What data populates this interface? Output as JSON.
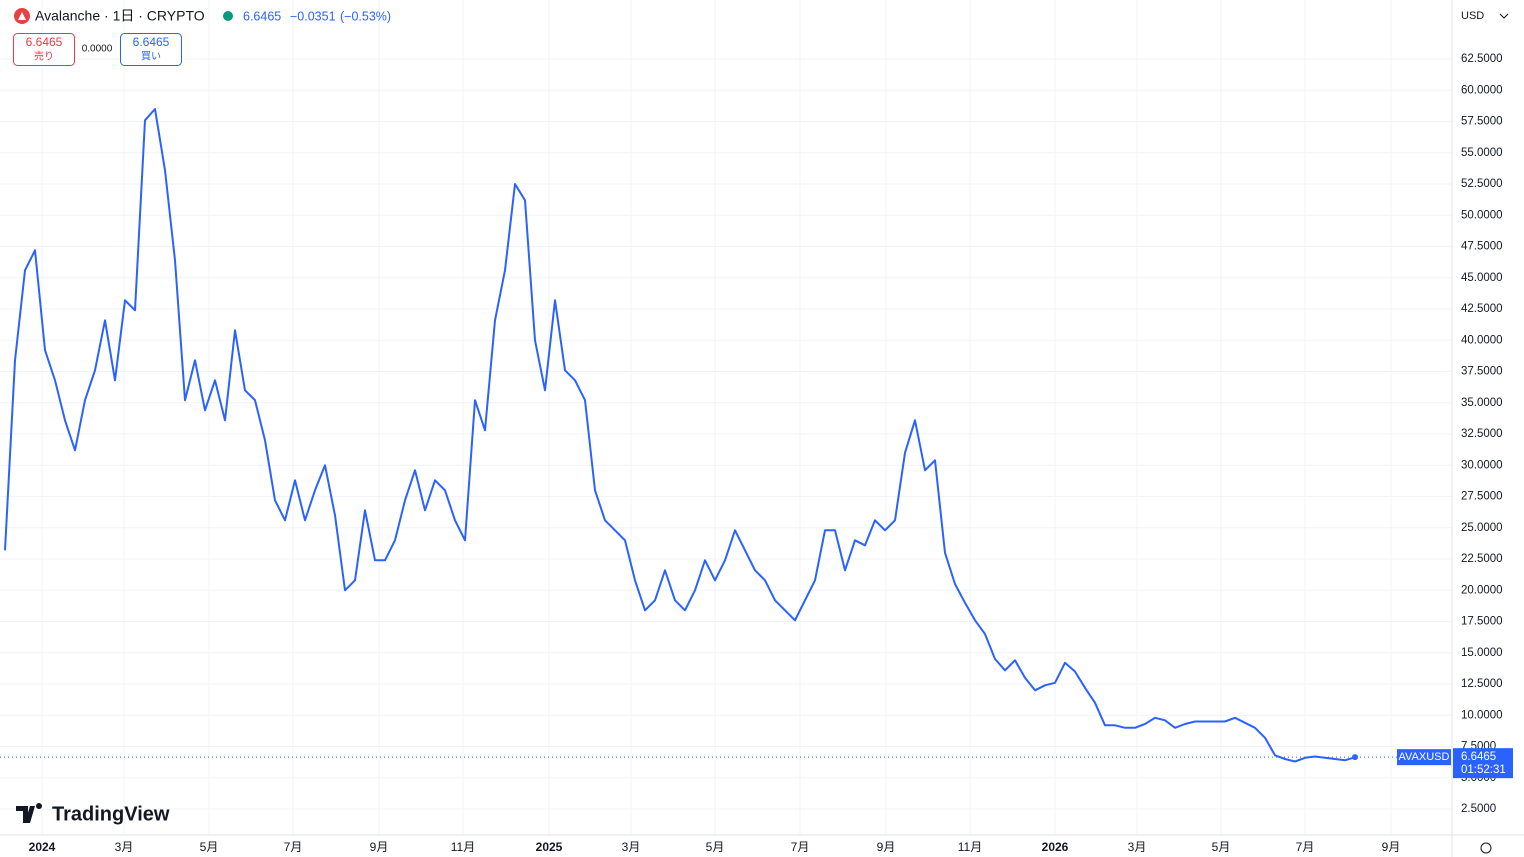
{
  "header": {
    "symbol": "Avalanche · 1日 · CRYPTO",
    "price": "6.6465",
    "change": "−0.0351",
    "change_pct": "(−0.53%)",
    "sell_price": "6.6465",
    "sell_label": "売り",
    "spread": "0.0000",
    "buy_price": "6.6465",
    "buy_label": "買い",
    "currency": "USD",
    "brand": "TradingView"
  },
  "chart_data": {
    "type": "line",
    "color": "#2962ff",
    "grid": true,
    "xlim": [
      0,
      144.7
    ],
    "xticks": [
      {
        "value": 3.7,
        "label": "2024"
      },
      {
        "value": 11.9,
        "label": "3月"
      },
      {
        "value": 20.4,
        "label": "5月"
      },
      {
        "value": 28.8,
        "label": "7月"
      },
      {
        "value": 37.4,
        "label": "9月"
      },
      {
        "value": 45.8,
        "label": "11月"
      },
      {
        "value": 54.4,
        "label": "2025"
      },
      {
        "value": 62.6,
        "label": "3月"
      },
      {
        "value": 71,
        "label": "5月"
      },
      {
        "value": 79.5,
        "label": "7月"
      },
      {
        "value": 88.1,
        "label": "9月"
      },
      {
        "value": 96.5,
        "label": "11月"
      },
      {
        "value": 105,
        "label": "2026"
      },
      {
        "value": 113.2,
        "label": "3月"
      },
      {
        "value": 121.6,
        "label": "5月"
      },
      {
        "value": 130,
        "label": "7月"
      },
      {
        "value": 138.6,
        "label": "9月"
      }
    ],
    "ylim": [
      0.42,
      67.22
    ],
    "yticks": [
      {
        "value": 2.5,
        "label": "2.5000"
      },
      {
        "value": 5,
        "label": "5.0000"
      },
      {
        "value": 7.5,
        "label": "7.5000"
      },
      {
        "value": 10,
        "label": "10.0000"
      },
      {
        "value": 12.5,
        "label": "12.5000"
      },
      {
        "value": 15,
        "label": "15.0000"
      },
      {
        "value": 17.5,
        "label": "17.5000"
      },
      {
        "value": 20,
        "label": "20.0000"
      },
      {
        "value": 22.5,
        "label": "22.5000"
      },
      {
        "value": 25,
        "label": "25.0000"
      },
      {
        "value": 27.5,
        "label": "27.5000"
      },
      {
        "value": 30,
        "label": "30.0000"
      },
      {
        "value": 32.5,
        "label": "32.5000"
      },
      {
        "value": 35,
        "label": "35.0000"
      },
      {
        "value": 37.5,
        "label": "37.5000"
      },
      {
        "value": 40,
        "label": "40.0000"
      },
      {
        "value": 42.5,
        "label": "42.5000"
      },
      {
        "value": 45,
        "label": "45.0000"
      },
      {
        "value": 47.5,
        "label": "47.5000"
      },
      {
        "value": 50,
        "label": "50.0000"
      },
      {
        "value": 52.5,
        "label": "52.5000"
      },
      {
        "value": 55,
        "label": "55.0000"
      },
      {
        "value": 57.5,
        "label": "57.5000"
      },
      {
        "value": 60,
        "label": "60.0000"
      },
      {
        "value": 62.5,
        "label": "62.5000"
      }
    ],
    "values": [
      23.2,
      38.4,
      45.6,
      47.2,
      39.2,
      36.8,
      33.6,
      31.2,
      35.2,
      37.6,
      41.6,
      36.8,
      43.2,
      42.4,
      57.6,
      58.5,
      53.6,
      46.4,
      35.2,
      38.4,
      34.4,
      36.8,
      33.6,
      40.8,
      36,
      35.2,
      32,
      27.2,
      25.6,
      28.8,
      25.6,
      28,
      30,
      26,
      20,
      20.8,
      26.4,
      22.4,
      22.4,
      24,
      27.2,
      29.6,
      26.4,
      28.8,
      28,
      25.6,
      24,
      35.2,
      32.8,
      41.6,
      45.6,
      52.5,
      51.2,
      40,
      36,
      43.2,
      37.6,
      36.8,
      35.2,
      28,
      25.6,
      24.8,
      24,
      20.8,
      18.4,
      19.2,
      21.6,
      19.2,
      18.4,
      20,
      22.4,
      20.8,
      22.4,
      24.8,
      23.2,
      21.6,
      20.8,
      19.2,
      18.4,
      17.6,
      19.2,
      20.8,
      24.8,
      24.8,
      21.6,
      24,
      23.6,
      25.6,
      24.8,
      25.6,
      31,
      33.6,
      29.6,
      30.4,
      23,
      20.5,
      19,
      17.6,
      16.5,
      14.5,
      13.6,
      14.4,
      13,
      12,
      12.4,
      12.6,
      14.2,
      13.5,
      12.2,
      11,
      9.2,
      9.2,
      9,
      9,
      9.3,
      9.8,
      9.6,
      9,
      9.3,
      9.5,
      9.5,
      9.5,
      9.5,
      9.8,
      9.4,
      9,
      8.2,
      6.8,
      6.5,
      6.3,
      6.6,
      6.7,
      6.6,
      6.5,
      6.4,
      6.6465
    ],
    "last_price": {
      "name": "AVAXUSD",
      "value": 6.6465,
      "countdown": "01:52:31"
    }
  }
}
